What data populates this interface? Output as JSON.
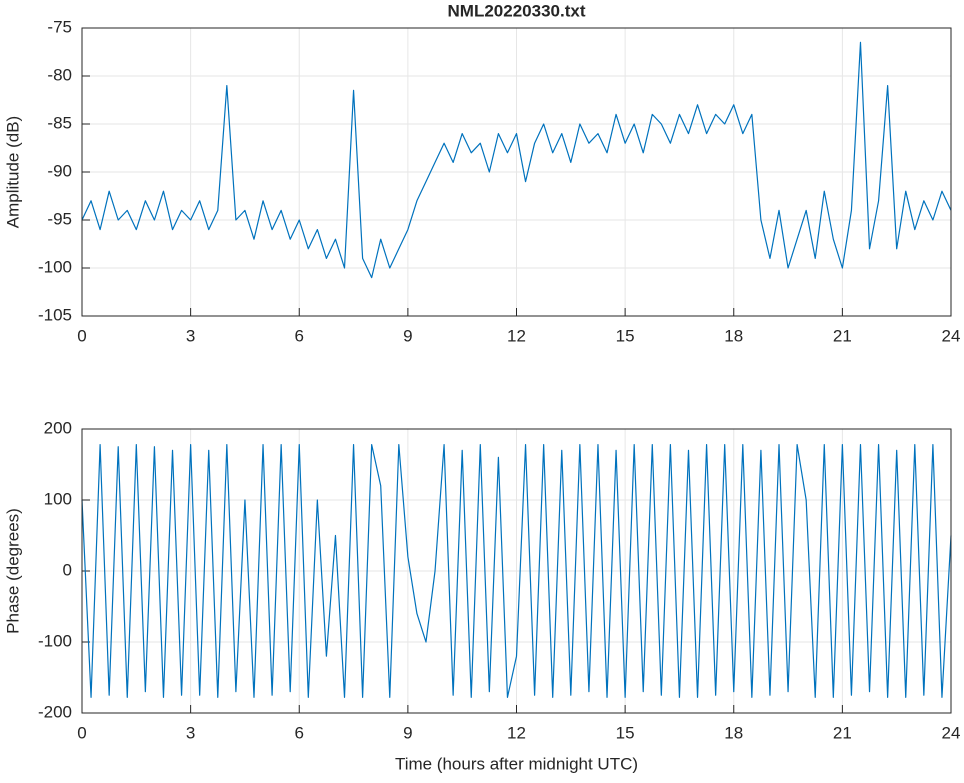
{
  "chart_data": [
    {
      "type": "line",
      "title": "NML20220330.txt",
      "y_label": "Amplitude (dB)",
      "color": "#0072bd",
      "grid": true,
      "x": [
        0,
        0.25,
        0.5,
        0.75,
        1,
        1.25,
        1.5,
        1.75,
        2,
        2.25,
        2.5,
        2.75,
        3,
        3.25,
        3.5,
        3.75,
        4,
        4.25,
        4.5,
        4.75,
        5,
        5.25,
        5.5,
        5.75,
        6,
        6.25,
        6.5,
        6.75,
        7,
        7.25,
        7.5,
        7.75,
        8,
        8.25,
        8.5,
        8.75,
        9,
        9.25,
        9.5,
        9.75,
        10,
        10.25,
        10.5,
        10.75,
        11,
        11.25,
        11.5,
        11.75,
        12,
        12.25,
        12.5,
        12.75,
        13,
        13.25,
        13.5,
        13.75,
        14,
        14.25,
        14.5,
        14.75,
        15,
        15.25,
        15.5,
        15.75,
        16,
        16.25,
        16.5,
        16.75,
        17,
        17.25,
        17.5,
        17.75,
        18,
        18.25,
        18.5,
        18.75,
        19,
        19.25,
        19.5,
        19.75,
        20,
        20.25,
        20.5,
        20.75,
        21,
        21.25,
        21.5,
        21.75,
        22,
        22.25,
        22.5,
        22.75,
        23,
        23.25,
        23.5,
        23.75,
        24
      ],
      "values": [
        -95,
        -93,
        -96,
        -92,
        -95,
        -94,
        -96,
        -93,
        -95,
        -92,
        -96,
        -94,
        -95,
        -93,
        -96,
        -94,
        -81,
        -95,
        -94,
        -97,
        -93,
        -96,
        -94,
        -97,
        -95,
        -98,
        -96,
        -99,
        -97,
        -100,
        -81.5,
        -99,
        -101,
        -97,
        -100,
        -98,
        -96,
        -93,
        -91,
        -89,
        -87,
        -89,
        -86,
        -88,
        -87,
        -90,
        -86,
        -88,
        -86,
        -91,
        -87,
        -85,
        -88,
        -86,
        -89,
        -85,
        -87,
        -86,
        -88,
        -84,
        -87,
        -85,
        -88,
        -84,
        -85,
        -87,
        -84,
        -86,
        -83,
        -86,
        -84,
        -85,
        -83,
        -86,
        -84,
        -95,
        -99,
        -94,
        -100,
        -97,
        -94,
        -99,
        -92,
        -97,
        -100,
        -94,
        -76.5,
        -98,
        -93,
        -81,
        -98,
        -92,
        -96,
        -93,
        -95,
        -92,
        -94
      ],
      "xlim": [
        0,
        24
      ],
      "xticks": [
        0,
        3,
        6,
        9,
        12,
        15,
        18,
        21,
        24
      ],
      "ylim": [
        -105,
        -75
      ],
      "yticks": [
        -105,
        -100,
        -95,
        -90,
        -85,
        -80,
        -75
      ]
    },
    {
      "type": "line",
      "y_label": "Phase (degrees)",
      "x_label": "Time (hours after midnight UTC)",
      "color": "#0072bd",
      "grid": true,
      "x": [
        0,
        0.25,
        0.5,
        0.75,
        1,
        1.25,
        1.5,
        1.75,
        2,
        2.25,
        2.5,
        2.75,
        3,
        3.25,
        3.5,
        3.75,
        4,
        4.25,
        4.5,
        4.75,
        5,
        5.25,
        5.5,
        5.75,
        6,
        6.25,
        6.5,
        6.75,
        7,
        7.25,
        7.5,
        7.75,
        8,
        8.25,
        8.5,
        8.75,
        9,
        9.25,
        9.5,
        9.75,
        10,
        10.25,
        10.5,
        10.75,
        11,
        11.25,
        11.5,
        11.75,
        12,
        12.25,
        12.5,
        12.75,
        13,
        13.25,
        13.5,
        13.75,
        14,
        14.25,
        14.5,
        14.75,
        15,
        15.25,
        15.5,
        15.75,
        16,
        16.25,
        16.5,
        16.75,
        17,
        17.25,
        17.5,
        17.75,
        18,
        18.25,
        18.5,
        18.75,
        19,
        19.25,
        19.5,
        19.75,
        20,
        20.25,
        20.5,
        20.75,
        21,
        21.25,
        21.5,
        21.75,
        22,
        22.25,
        22.5,
        22.75,
        23,
        23.25,
        23.5,
        23.75,
        24
      ],
      "values": [
        100,
        -178,
        178,
        -175,
        175,
        -178,
        178,
        -170,
        175,
        -178,
        170,
        -175,
        178,
        -175,
        170,
        -178,
        178,
        -170,
        100,
        -178,
        178,
        -175,
        178,
        -170,
        178,
        -178,
        100,
        -120,
        50,
        -178,
        178,
        -178,
        178,
        120,
        -178,
        178,
        20,
        -60,
        -100,
        0,
        178,
        -175,
        170,
        -178,
        178,
        -170,
        160,
        -178,
        -120,
        178,
        -175,
        178,
        -178,
        170,
        -175,
        178,
        -170,
        178,
        -178,
        170,
        -178,
        178,
        -170,
        178,
        -175,
        178,
        -178,
        170,
        -178,
        178,
        -175,
        178,
        -170,
        178,
        -178,
        170,
        -175,
        178,
        -170,
        178,
        100,
        -178,
        178,
        -178,
        178,
        -175,
        178,
        -170,
        178,
        -178,
        170,
        -178,
        178,
        -175,
        178,
        -178,
        50
      ],
      "xlim": [
        0,
        24
      ],
      "xticks": [
        0,
        3,
        6,
        9,
        12,
        15,
        18,
        21,
        24
      ],
      "ylim": [
        -200,
        200
      ],
      "yticks": [
        -200,
        -100,
        0,
        100,
        200
      ]
    }
  ]
}
